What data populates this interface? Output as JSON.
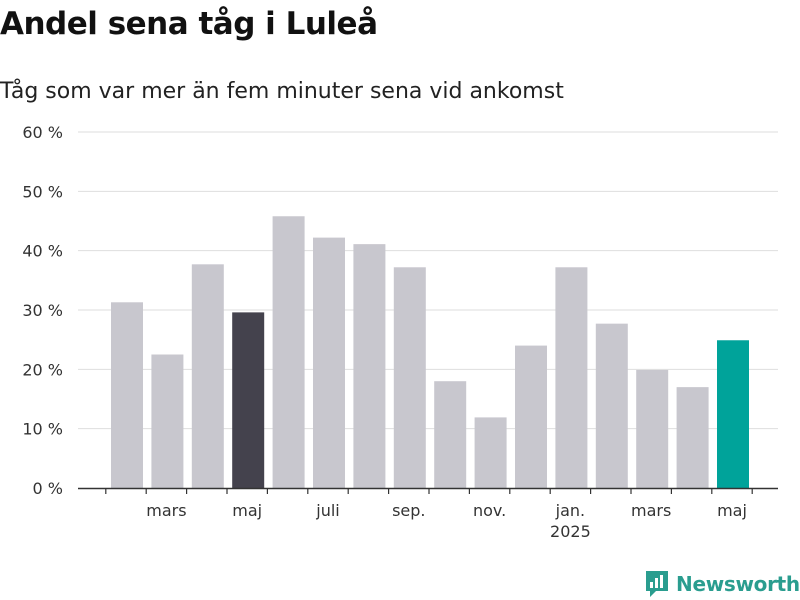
{
  "title": "Andel sena tåg i Luleå",
  "subtitle": "Tåg som var mer än fem minuter sena vid ankomst",
  "brand": {
    "name": "Newsworthy",
    "icon": "newsworthy-logo-icon",
    "color": "#2a9d8f"
  },
  "colors": {
    "bar": "#c8c7ce",
    "highlight_dark": "#44424d",
    "highlight_teal": "#00a39a"
  },
  "chart_data": {
    "type": "bar",
    "title": "Andel sena tåg i Luleå",
    "subtitle": "Tåg som var mer än fem minuter sena vid ankomst",
    "ylim": [
      0,
      60
    ],
    "yticks": [
      0,
      10,
      20,
      30,
      40,
      50,
      60
    ],
    "ytick_labels": [
      "0 %",
      "10 %",
      "20 %",
      "30 %",
      "40 %",
      "50 %",
      "60 %"
    ],
    "grid": true,
    "categories": [
      "2024-02",
      "2024-03",
      "2024-04",
      "2024-05",
      "2024-06",
      "2024-07",
      "2024-08",
      "2024-09",
      "2024-10",
      "2024-11",
      "2024-12",
      "2025-01",
      "2025-02",
      "2025-03",
      "2025-04",
      "2025-05"
    ],
    "values": [
      31.3,
      22.5,
      37.7,
      29.6,
      45.8,
      42.2,
      41.1,
      37.2,
      18.0,
      11.9,
      24.0,
      37.2,
      27.7,
      19.9,
      17.0,
      24.9
    ],
    "highlight": {
      "2024-05": "dark",
      "2025-05": "teal"
    },
    "xtick_labels": [
      {
        "category": "2024-03",
        "label": "mars"
      },
      {
        "category": "2024-05",
        "label": "maj"
      },
      {
        "category": "2024-07",
        "label": "juli"
      },
      {
        "category": "2024-09",
        "label": "sep."
      },
      {
        "category": "2024-11",
        "label": "nov."
      },
      {
        "category": "2025-01",
        "label": "jan.",
        "sublabel": "2025"
      },
      {
        "category": "2025-03",
        "label": "mars"
      },
      {
        "category": "2025-05",
        "label": "maj"
      }
    ]
  }
}
